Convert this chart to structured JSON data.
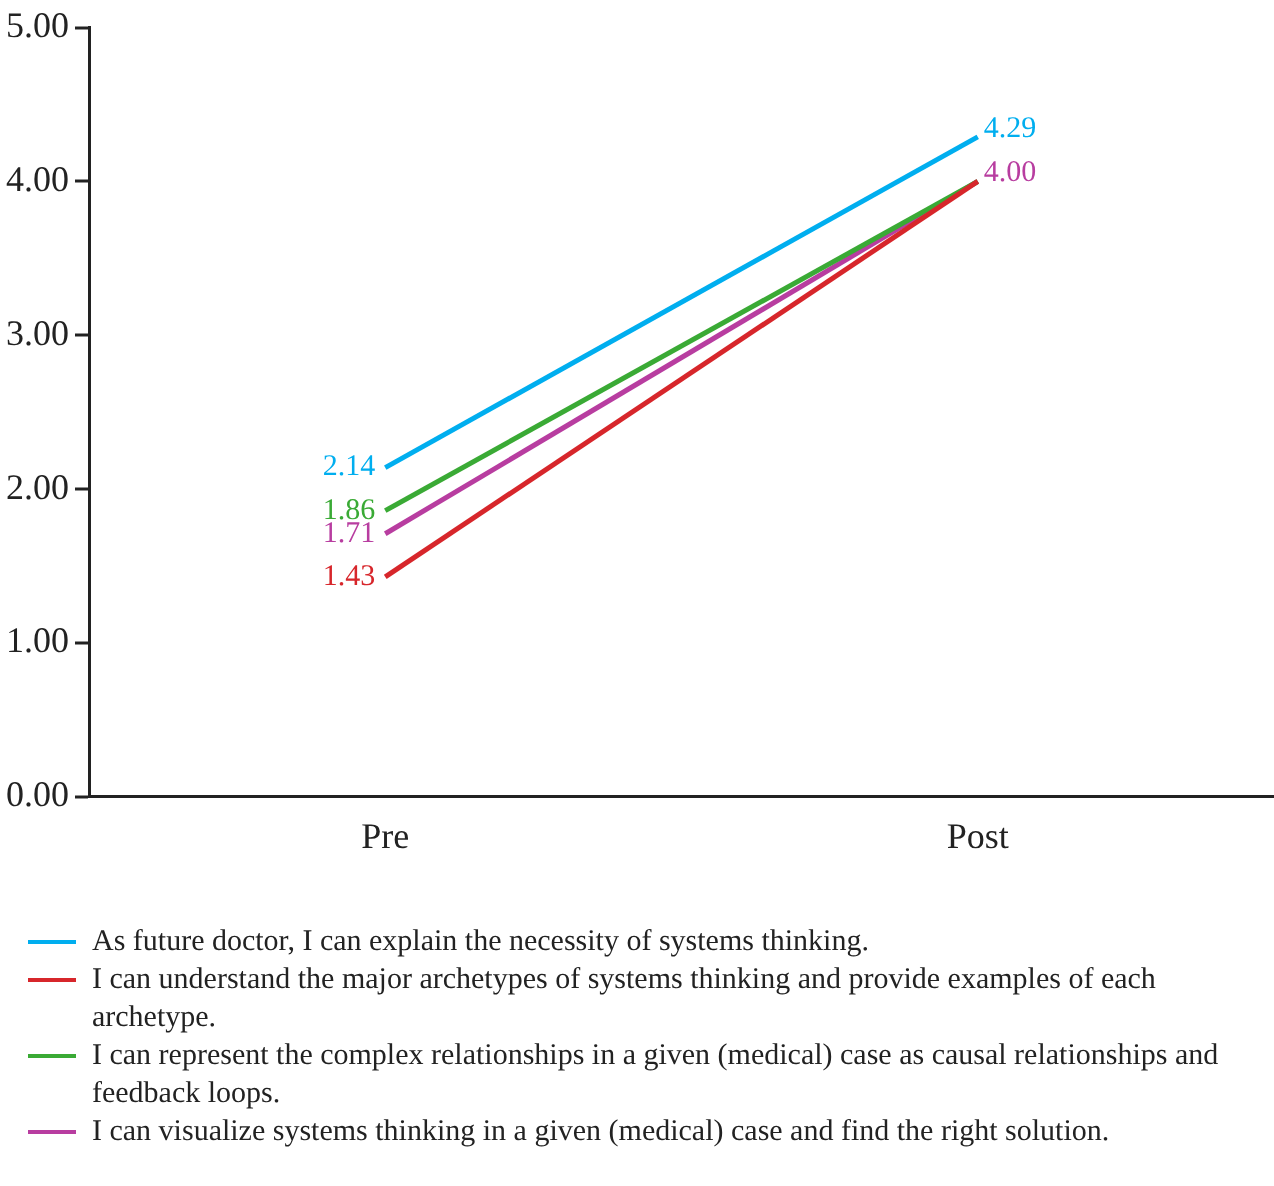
{
  "chart_data": {
    "type": "line",
    "categories": [
      "Pre",
      "Post"
    ],
    "series": [
      {
        "name": "As future doctor, I can explain the necessity of systems thinking.",
        "color": "#00aeef",
        "values": [
          2.14,
          4.29
        ],
        "value_labels": [
          "2.14",
          "4.29"
        ]
      },
      {
        "name": "I can understand the major archetypes of systems thinking and provide examples of each archetype.",
        "color": "#d7262b",
        "values": [
          1.43,
          4.0
        ],
        "value_labels": [
          "1.43",
          null
        ]
      },
      {
        "name": "I can represent the complex relationships in a given (medical) case as causal relationships and feedback loops.",
        "color": "#3aaa35",
        "values": [
          1.86,
          4.0
        ],
        "value_labels": [
          "1.86",
          null
        ]
      },
      {
        "name": "I can visualize systems thinking in a given (medical) case and find the right solution.",
        "color": "#b83da0",
        "values": [
          1.71,
          4.0
        ],
        "value_labels": [
          "1.71",
          "4.00"
        ]
      }
    ],
    "ylim": [
      0,
      5
    ],
    "yticks": [
      {
        "value": 0,
        "label": "0.00"
      },
      {
        "value": 1,
        "label": "1.00"
      },
      {
        "value": 2,
        "label": "2.00"
      },
      {
        "value": 3,
        "label": "3.00"
      },
      {
        "value": 4,
        "label": "4.00"
      },
      {
        "value": 5,
        "label": "5.00"
      }
    ],
    "grid": false,
    "legend": "bottom",
    "marker": "none",
    "line_style": "solid"
  }
}
